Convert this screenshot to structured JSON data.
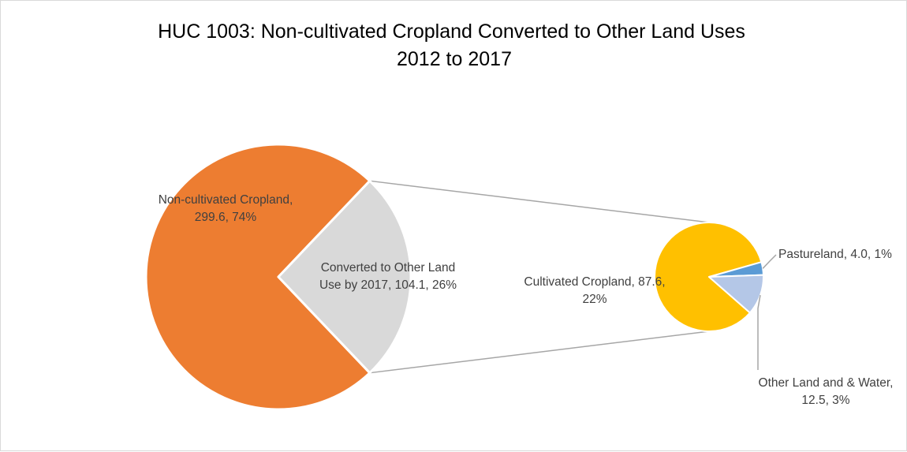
{
  "chart_data": {
    "type": "pie",
    "subtype": "pie-of-pie",
    "title_lines": [
      "HUC 1003: Non-cultivated Cropland Converted to Other Land Uses",
      "2012 to 2017"
    ],
    "main_pie": {
      "slices": [
        {
          "label_lines": [
            "Non-cultivated Cropland,",
            "299.6, 74%"
          ],
          "value": 299.6,
          "percent": 74,
          "color": "#ED7D31"
        },
        {
          "label_lines": [
            "Converted to Other Land",
            "Use by 2017, 104.1, 26%"
          ],
          "value": 104.1,
          "percent": 26,
          "color": "#D9D9D9"
        }
      ]
    },
    "secondary_pie": {
      "slices": [
        {
          "label_lines": [
            "Cultivated Cropland, 87.6,",
            "22%"
          ],
          "value": 87.6,
          "percent": 22,
          "color": "#FFC000"
        },
        {
          "label_lines": [
            "Pastureland, 4.0, 1%"
          ],
          "value": 4.0,
          "percent": 1,
          "color": "#5B9BD5"
        },
        {
          "label_lines": [
            "Other Land and & Water,",
            "12.5, 3%"
          ],
          "value": 12.5,
          "percent": 3,
          "color": "#B4C7E7"
        }
      ]
    },
    "connector_color": "#A6A6A6",
    "legend": "none"
  }
}
